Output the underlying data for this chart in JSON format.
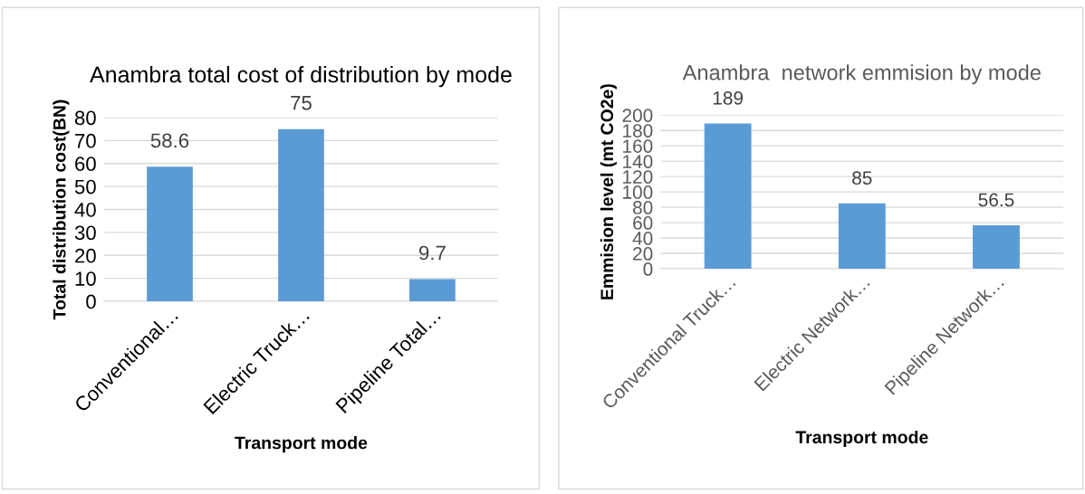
{
  "chart_data": [
    {
      "type": "bar",
      "title": "Anambra total cost of distribution by mode",
      "xlabel": "Transport mode",
      "ylabel": "Total distribution cost(BN)",
      "categories": [
        "Conventional…",
        "Electric Truck…",
        "Pipeline Total…"
      ],
      "series": [
        {
          "color": "#5b9bd5",
          "values": [
            58.6,
            75,
            9.7
          ]
        }
      ],
      "ylim": [
        0,
        80
      ],
      "yticks": [
        0,
        10,
        20,
        30,
        40,
        50,
        60,
        70,
        80
      ],
      "grid": "y",
      "data_labels": true,
      "legend": false
    },
    {
      "type": "bar",
      "title": "Anambra  network emmision by mode",
      "xlabel": "Transport mode",
      "ylabel": "Emmision level (mt CO2e)",
      "categories": [
        "Conventional Truck…",
        "Electric Network…",
        "Pipeline Network…"
      ],
      "series": [
        {
          "color": "#5b9bd5",
          "values": [
            189,
            85,
            56.5
          ]
        }
      ],
      "ylim": [
        0,
        200
      ],
      "yticks": [
        0,
        20,
        40,
        60,
        80,
        100,
        120,
        140,
        160,
        180,
        200
      ],
      "grid": "y",
      "data_labels": true,
      "legend": false
    }
  ]
}
